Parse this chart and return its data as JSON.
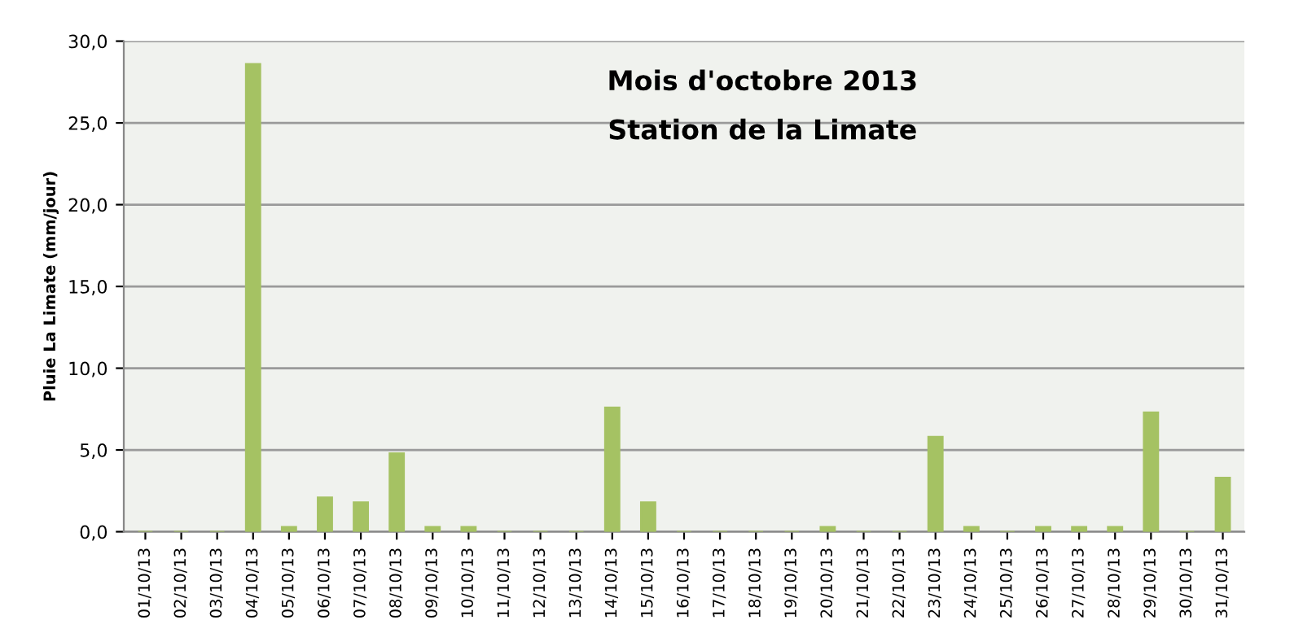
{
  "chart_data": {
    "type": "bar",
    "title": "Mois d'octobre 2013",
    "subtitle": "Station de la Limate",
    "ylabel": "Pluie La Limate (mm/jour)",
    "categories": [
      "01/10/13",
      "02/10/13",
      "03/10/13",
      "04/10/13",
      "05/10/13",
      "06/10/13",
      "07/10/13",
      "08/10/13",
      "09/10/13",
      "10/10/13",
      "11/10/13",
      "12/10/13",
      "13/10/13",
      "14/10/13",
      "15/10/13",
      "16/10/13",
      "17/10/13",
      "18/10/13",
      "19/10/13",
      "20/10/13",
      "21/10/13",
      "22/10/13",
      "23/10/13",
      "24/10/13",
      "25/10/13",
      "26/10/13",
      "27/10/13",
      "28/10/13",
      "29/10/13",
      "30/10/13",
      "31/10/13"
    ],
    "values": [
      0,
      0,
      0,
      28.6,
      0.3,
      2.1,
      1.8,
      4.8,
      0.3,
      0.3,
      0,
      0,
      0,
      7.6,
      1.8,
      0,
      0,
      0,
      0,
      0.3,
      0,
      0,
      5.8,
      0.3,
      0,
      0.3,
      0.3,
      0.3,
      7.3,
      0,
      3.3
    ],
    "color": "#a5c263",
    "ylim": [
      0,
      30
    ],
    "yticks": [
      {
        "value": 0,
        "label": "0,0"
      },
      {
        "value": 5,
        "label": "5,0"
      },
      {
        "value": 10,
        "label": "10,0"
      },
      {
        "value": 15,
        "label": "15,0"
      },
      {
        "value": 20,
        "label": "20,0"
      },
      {
        "value": 25,
        "label": "25,0"
      },
      {
        "value": 30,
        "label": "30,0"
      }
    ],
    "grid": "y"
  }
}
